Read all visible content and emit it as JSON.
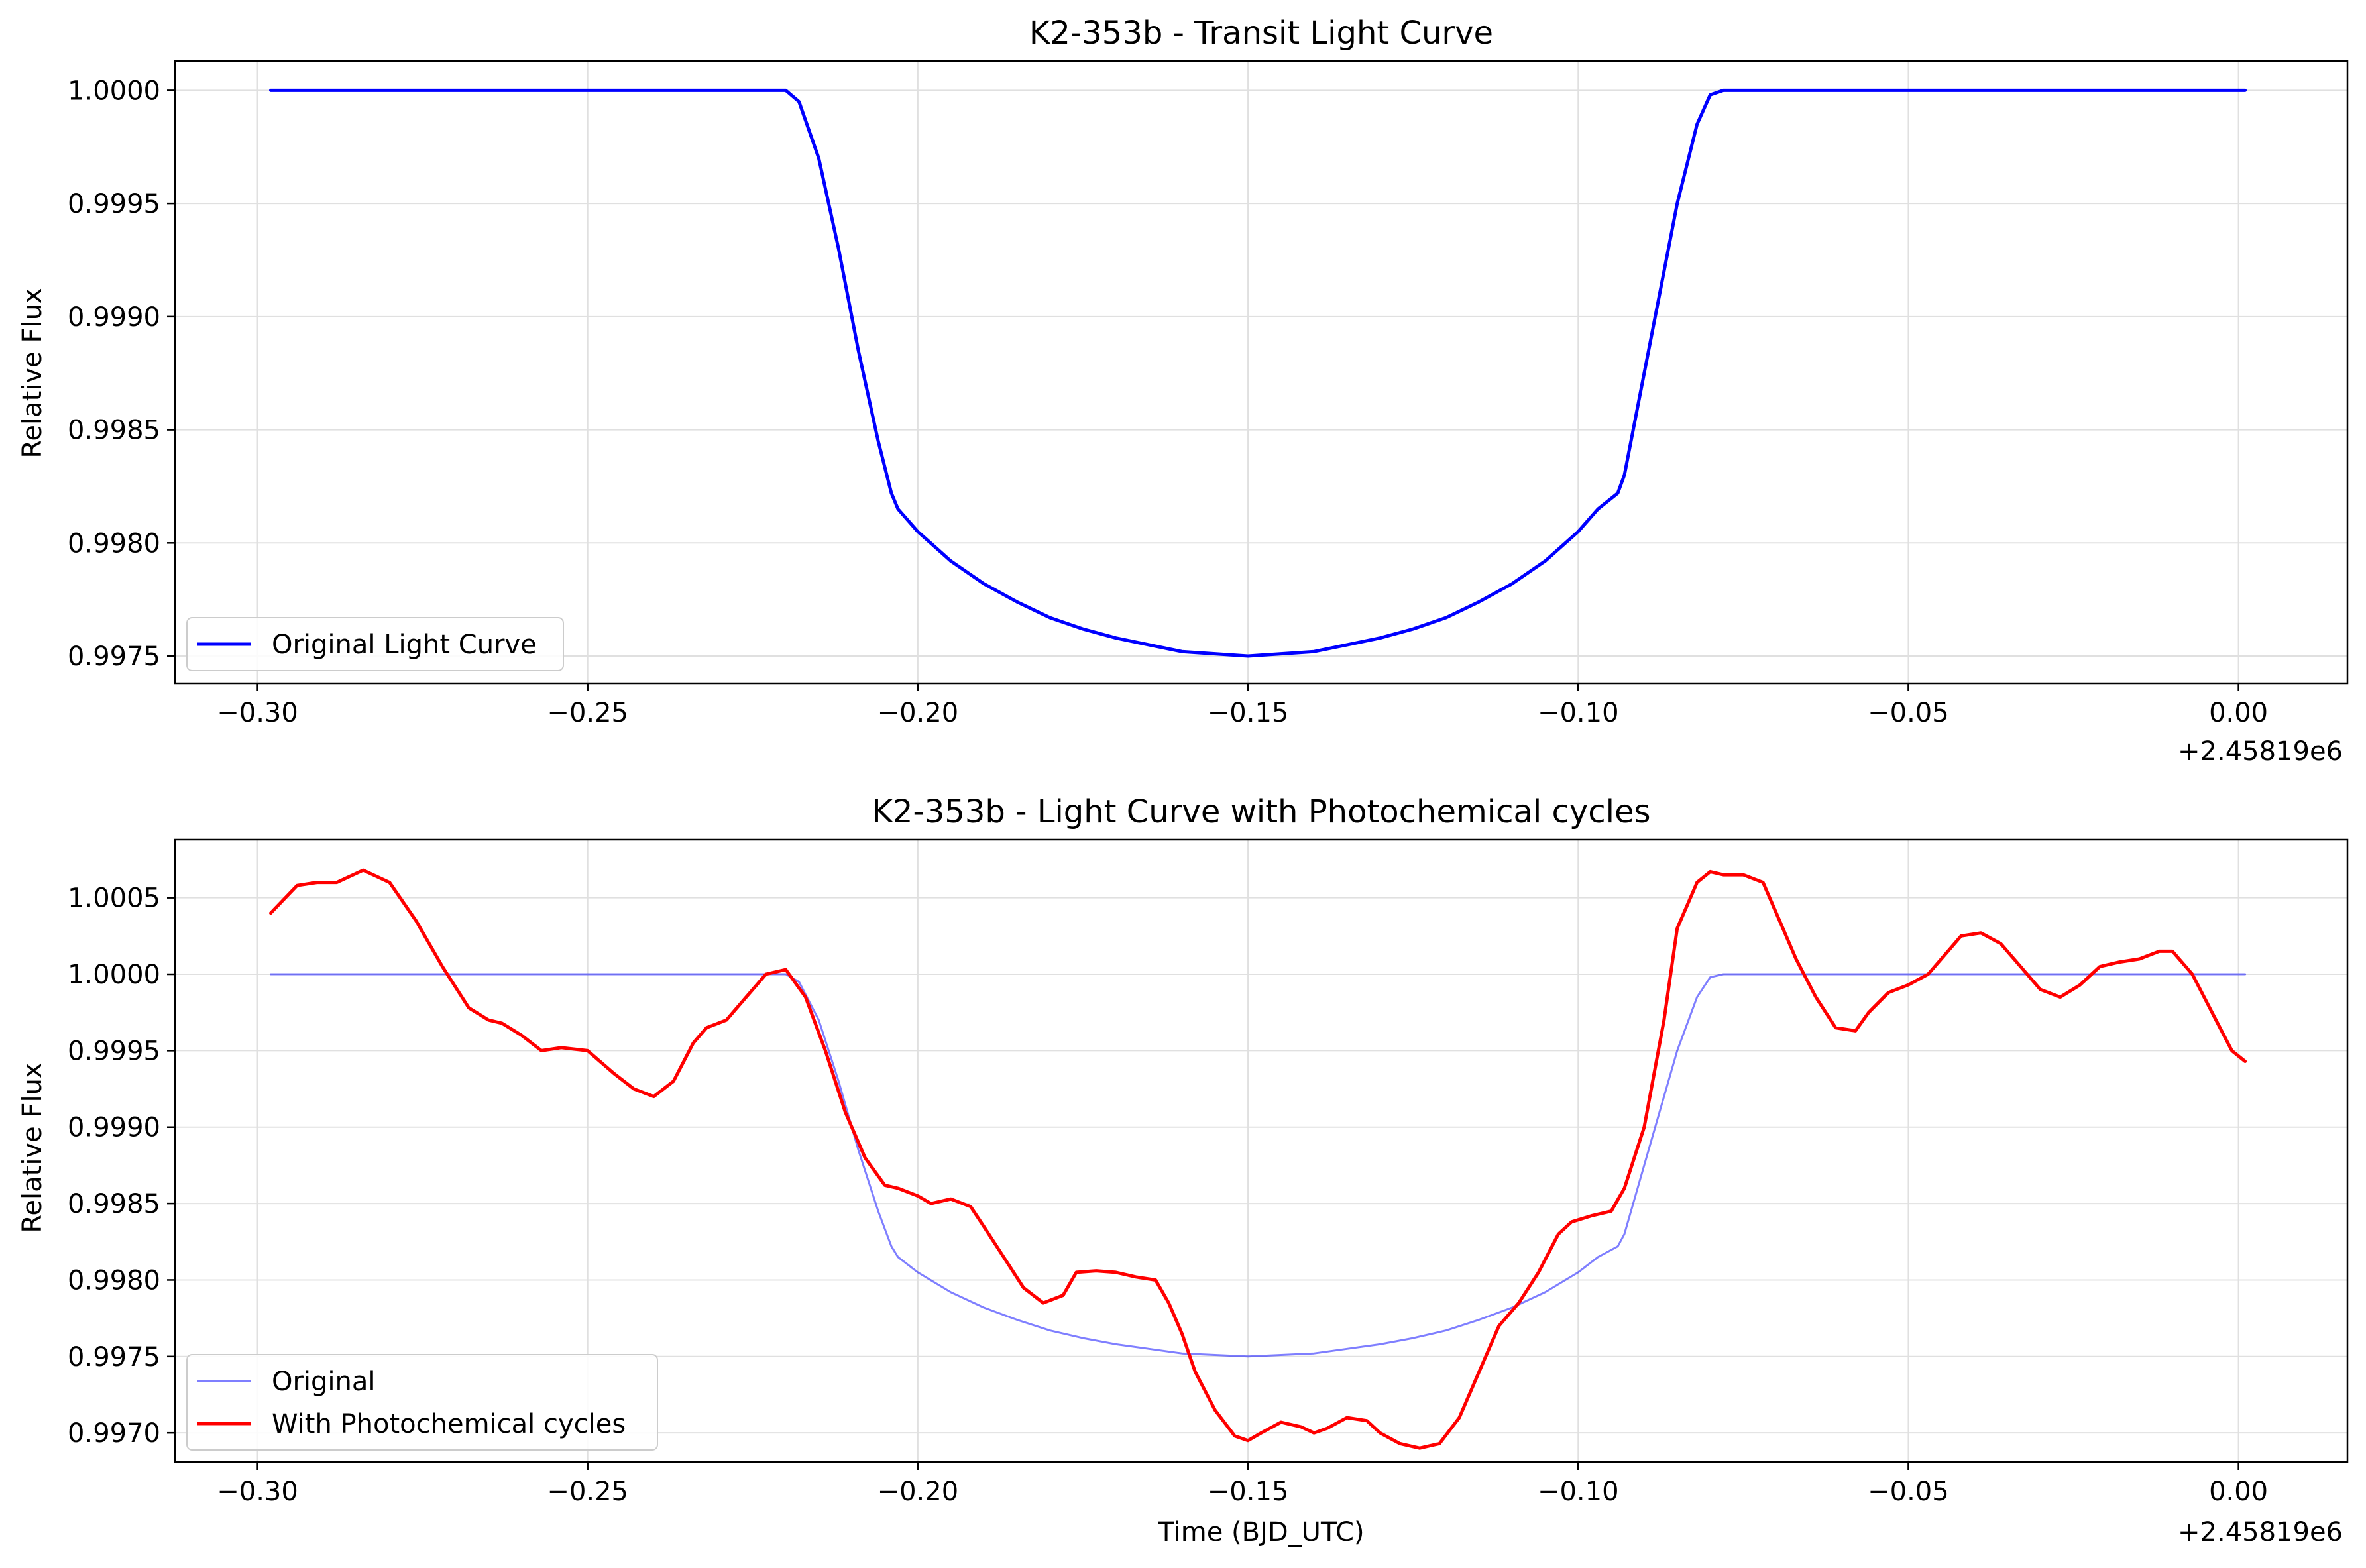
{
  "chart_data": [
    {
      "type": "line",
      "title": "K2-353b - Transit Light Curve",
      "xlabel": "",
      "ylabel": "Relative Flux",
      "x_offset_label": "+2.45819e6",
      "xlim": [
        -0.3125,
        0.0165
      ],
      "ylim": [
        0.99738,
        1.00013
      ],
      "xticks": [
        -0.3,
        -0.25,
        -0.2,
        -0.15,
        -0.1,
        -0.05,
        0.0
      ],
      "xtick_labels": [
        "−0.30",
        "−0.25",
        "−0.20",
        "−0.15",
        "−0.10",
        "−0.05",
        "0.00"
      ],
      "yticks": [
        0.9975,
        0.998,
        0.9985,
        0.999,
        0.9995,
        1.0
      ],
      "ytick_labels": [
        "0.9975",
        "0.9980",
        "0.9985",
        "0.9990",
        "0.9995",
        "1.0000"
      ],
      "grid": true,
      "legend_position": "lower-left",
      "series": [
        {
          "name": "Original Light Curve",
          "color": "#0000ff",
          "x": [
            -0.298,
            -0.22,
            -0.218,
            -0.215,
            -0.212,
            -0.209,
            -0.206,
            -0.204,
            -0.203,
            -0.2,
            -0.195,
            -0.19,
            -0.185,
            -0.18,
            -0.175,
            -0.17,
            -0.165,
            -0.16,
            -0.155,
            -0.15,
            -0.145,
            -0.14,
            -0.135,
            -0.13,
            -0.125,
            -0.12,
            -0.115,
            -0.11,
            -0.105,
            -0.1,
            -0.097,
            -0.094,
            -0.093,
            -0.091,
            -0.088,
            -0.085,
            -0.082,
            -0.08,
            -0.078,
            0.001
          ],
          "y": [
            1.0,
            1.0,
            0.99995,
            0.9997,
            0.9993,
            0.99885,
            0.99845,
            0.99822,
            0.99815,
            0.99805,
            0.99792,
            0.99782,
            0.99774,
            0.99767,
            0.99762,
            0.99758,
            0.99755,
            0.99752,
            0.99751,
            0.9975,
            0.99751,
            0.99752,
            0.99755,
            0.99758,
            0.99762,
            0.99767,
            0.99774,
            0.99782,
            0.99792,
            0.99805,
            0.99815,
            0.99822,
            0.9983,
            0.9986,
            0.99905,
            0.9995,
            0.99985,
            0.99998,
            1.0,
            1.0
          ]
        }
      ]
    },
    {
      "type": "line",
      "title": "K2-353b - Light Curve with Photochemical cycles",
      "xlabel": "Time (BJD_UTC)",
      "ylabel": "Relative Flux",
      "x_offset_label": "+2.45819e6",
      "xlim": [
        -0.3125,
        0.0165
      ],
      "ylim": [
        0.99681,
        1.00088
      ],
      "xticks": [
        -0.3,
        -0.25,
        -0.2,
        -0.15,
        -0.1,
        -0.05,
        0.0
      ],
      "xtick_labels": [
        "−0.30",
        "−0.25",
        "−0.20",
        "−0.15",
        "−0.10",
        "−0.05",
        "0.00"
      ],
      "yticks": [
        0.997,
        0.9975,
        0.998,
        0.9985,
        0.999,
        0.9995,
        1.0,
        1.0005
      ],
      "ytick_labels": [
        "0.9970",
        "0.9975",
        "0.9980",
        "0.9985",
        "0.9990",
        "0.9995",
        "1.0000",
        "1.0005"
      ],
      "grid": true,
      "legend_position": "lower-left",
      "series": [
        {
          "name": "Original",
          "color": "#0000ff",
          "alpha": 0.5,
          "x": [
            -0.298,
            -0.22,
            -0.218,
            -0.215,
            -0.212,
            -0.209,
            -0.206,
            -0.204,
            -0.203,
            -0.2,
            -0.195,
            -0.19,
            -0.185,
            -0.18,
            -0.175,
            -0.17,
            -0.165,
            -0.16,
            -0.155,
            -0.15,
            -0.145,
            -0.14,
            -0.135,
            -0.13,
            -0.125,
            -0.12,
            -0.115,
            -0.11,
            -0.105,
            -0.1,
            -0.097,
            -0.094,
            -0.093,
            -0.091,
            -0.088,
            -0.085,
            -0.082,
            -0.08,
            -0.078,
            0.001
          ],
          "y": [
            1.0,
            1.0,
            0.99995,
            0.9997,
            0.9993,
            0.99885,
            0.99845,
            0.99822,
            0.99815,
            0.99805,
            0.99792,
            0.99782,
            0.99774,
            0.99767,
            0.99762,
            0.99758,
            0.99755,
            0.99752,
            0.99751,
            0.9975,
            0.99751,
            0.99752,
            0.99755,
            0.99758,
            0.99762,
            0.99767,
            0.99774,
            0.99782,
            0.99792,
            0.99805,
            0.99815,
            0.99822,
            0.9983,
            0.9986,
            0.99905,
            0.9995,
            0.99985,
            0.99998,
            1.0,
            1.0
          ]
        },
        {
          "name": "With Photochemical cycles",
          "color": "#ff0000",
          "x": [
            -0.298,
            -0.294,
            -0.291,
            -0.288,
            -0.284,
            -0.28,
            -0.276,
            -0.272,
            -0.268,
            -0.265,
            -0.263,
            -0.26,
            -0.257,
            -0.254,
            -0.25,
            -0.246,
            -0.243,
            -0.24,
            -0.237,
            -0.234,
            -0.232,
            -0.229,
            -0.226,
            -0.223,
            -0.22,
            -0.217,
            -0.214,
            -0.211,
            -0.208,
            -0.205,
            -0.203,
            -0.2,
            -0.198,
            -0.195,
            -0.192,
            -0.19,
            -0.187,
            -0.184,
            -0.181,
            -0.178,
            -0.176,
            -0.173,
            -0.17,
            -0.167,
            -0.164,
            -0.162,
            -0.16,
            -0.158,
            -0.155,
            -0.152,
            -0.15,
            -0.148,
            -0.145,
            -0.142,
            -0.14,
            -0.138,
            -0.135,
            -0.132,
            -0.13,
            -0.127,
            -0.124,
            -0.121,
            -0.118,
            -0.115,
            -0.112,
            -0.109,
            -0.106,
            -0.103,
            -0.101,
            -0.098,
            -0.095,
            -0.093,
            -0.09,
            -0.087,
            -0.085,
            -0.082,
            -0.08,
            -0.078,
            -0.075,
            -0.072,
            -0.07,
            -0.067,
            -0.064,
            -0.061,
            -0.058,
            -0.056,
            -0.053,
            -0.05,
            -0.047,
            -0.044,
            -0.042,
            -0.039,
            -0.036,
            -0.033,
            -0.03,
            -0.027,
            -0.024,
            -0.021,
            -0.018,
            -0.015,
            -0.012,
            -0.01,
            -0.007,
            -0.004,
            -0.001,
            0.001
          ],
          "y": [
            1.0004,
            1.00058,
            1.0006,
            1.0006,
            1.00068,
            1.0006,
            1.00035,
            1.00005,
            0.99978,
            0.9997,
            0.99968,
            0.9996,
            0.9995,
            0.99952,
            0.9995,
            0.99935,
            0.99925,
            0.9992,
            0.9993,
            0.99955,
            0.99965,
            0.9997,
            0.99985,
            1.0,
            1.00003,
            0.99985,
            0.9995,
            0.9991,
            0.9988,
            0.99862,
            0.9986,
            0.99855,
            0.9985,
            0.99853,
            0.99848,
            0.99835,
            0.99815,
            0.99795,
            0.99785,
            0.9979,
            0.99805,
            0.99806,
            0.99805,
            0.99802,
            0.998,
            0.99785,
            0.99765,
            0.9974,
            0.99715,
            0.99698,
            0.99695,
            0.997,
            0.99707,
            0.99704,
            0.997,
            0.99703,
            0.9971,
            0.99708,
            0.997,
            0.99693,
            0.9969,
            0.99693,
            0.9971,
            0.9974,
            0.9977,
            0.99785,
            0.99805,
            0.9983,
            0.99838,
            0.99842,
            0.99845,
            0.9986,
            0.999,
            0.9997,
            1.0003,
            1.0006,
            1.00067,
            1.00065,
            1.00065,
            1.0006,
            1.0004,
            1.0001,
            0.99985,
            0.99965,
            0.99963,
            0.99975,
            0.99988,
            0.99993,
            1.0,
            1.00015,
            1.00025,
            1.00027,
            1.0002,
            1.00005,
            0.9999,
            0.99985,
            0.99993,
            1.00005,
            1.00008,
            1.0001,
            1.00015,
            1.00015,
            1.0,
            0.99975,
            0.9995,
            0.99943
          ]
        }
      ]
    }
  ]
}
